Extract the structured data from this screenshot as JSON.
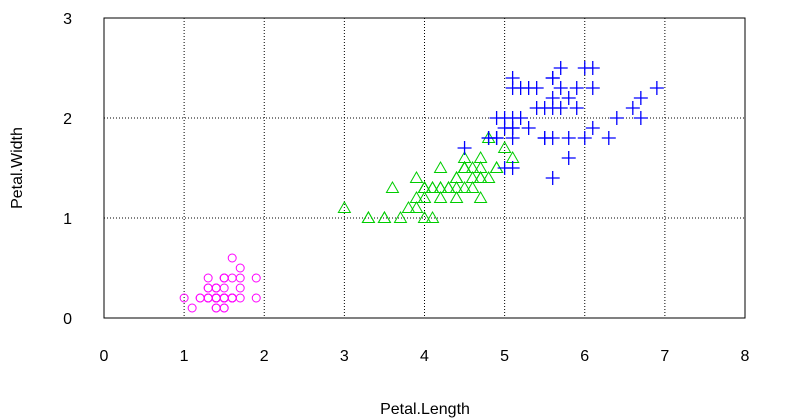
{
  "chart_data": {
    "type": "scatter",
    "x_label": "Petal.Length",
    "y_label": "Petal.Width",
    "xlim": [
      0,
      8
    ],
    "ylim": [
      0,
      3
    ],
    "xticks": [
      0,
      1,
      2,
      3,
      4,
      5,
      6,
      7,
      8
    ],
    "yticks": [
      0,
      1,
      2,
      3
    ],
    "grid": true,
    "series": [
      {
        "color": "#ff00ff",
        "marker": "circle",
        "x": [
          1.4,
          1.4,
          1.3,
          1.5,
          1.4,
          1.7,
          1.4,
          1.5,
          1.4,
          1.5,
          1.5,
          1.6,
          1.4,
          1.1,
          1.2,
          1.5,
          1.3,
          1.4,
          1.7,
          1.5,
          1.7,
          1.5,
          1.0,
          1.7,
          1.9,
          1.6,
          1.6,
          1.5,
          1.4,
          1.6,
          1.6,
          1.5,
          1.5,
          1.4,
          1.5,
          1.2,
          1.3,
          1.4,
          1.3,
          1.5,
          1.3,
          1.3,
          1.3,
          1.6,
          1.9,
          1.4,
          1.6,
          1.4,
          1.5,
          1.4
        ],
        "y": [
          0.2,
          0.2,
          0.2,
          0.2,
          0.2,
          0.4,
          0.3,
          0.2,
          0.2,
          0.1,
          0.2,
          0.2,
          0.1,
          0.1,
          0.2,
          0.4,
          0.4,
          0.3,
          0.3,
          0.3,
          0.2,
          0.4,
          0.2,
          0.5,
          0.2,
          0.2,
          0.4,
          0.2,
          0.2,
          0.2,
          0.2,
          0.4,
          0.1,
          0.2,
          0.2,
          0.2,
          0.2,
          0.1,
          0.2,
          0.2,
          0.3,
          0.3,
          0.2,
          0.6,
          0.4,
          0.3,
          0.2,
          0.2,
          0.2,
          0.2
        ]
      },
      {
        "color": "#00cd00",
        "marker": "triangle",
        "x": [
          4.7,
          4.5,
          4.9,
          4.0,
          4.6,
          4.5,
          4.7,
          3.3,
          4.6,
          3.9,
          3.5,
          4.2,
          4.0,
          4.7,
          3.6,
          4.4,
          4.5,
          4.1,
          4.5,
          3.9,
          4.8,
          4.0,
          4.9,
          4.7,
          4.3,
          4.4,
          4.8,
          5.0,
          4.5,
          3.5,
          3.8,
          3.7,
          3.9,
          5.1,
          4.5,
          4.5,
          4.7,
          4.4,
          4.1,
          4.0,
          4.4,
          4.6,
          4.0,
          3.3,
          4.2,
          4.2,
          4.2,
          4.3,
          3.0,
          4.1
        ],
        "y": [
          1.4,
          1.5,
          1.5,
          1.3,
          1.5,
          1.3,
          1.6,
          1.0,
          1.3,
          1.4,
          1.0,
          1.5,
          1.0,
          1.4,
          1.3,
          1.4,
          1.5,
          1.0,
          1.5,
          1.1,
          1.8,
          1.3,
          1.5,
          1.2,
          1.3,
          1.4,
          1.4,
          1.7,
          1.5,
          1.0,
          1.1,
          1.0,
          1.2,
          1.6,
          1.5,
          1.6,
          1.5,
          1.3,
          1.3,
          1.3,
          1.2,
          1.4,
          1.2,
          1.0,
          1.3,
          1.2,
          1.3,
          1.3,
          1.1,
          1.3
        ]
      },
      {
        "color": "#0000ff",
        "marker": "plus",
        "x": [
          6.0,
          5.1,
          5.9,
          5.6,
          5.8,
          6.6,
          4.5,
          6.3,
          5.8,
          6.1,
          5.1,
          5.3,
          5.5,
          5.0,
          5.1,
          5.3,
          5.5,
          6.7,
          6.9,
          5.0,
          5.7,
          4.9,
          6.7,
          4.9,
          5.7,
          6.0,
          4.8,
          4.9,
          5.6,
          5.8,
          6.1,
          6.4,
          5.6,
          5.1,
          5.6,
          6.1,
          5.6,
          5.5,
          4.8,
          5.4,
          5.6,
          5.1,
          5.1,
          5.9,
          5.7,
          5.2,
          5.0,
          5.2,
          5.4,
          5.1
        ],
        "y": [
          2.5,
          1.9,
          2.1,
          1.8,
          2.2,
          2.1,
          1.7,
          1.8,
          1.8,
          2.5,
          2.0,
          1.9,
          2.1,
          2.0,
          2.4,
          2.3,
          1.8,
          2.2,
          2.3,
          1.5,
          2.3,
          2.0,
          2.0,
          1.8,
          2.1,
          1.8,
          1.8,
          1.8,
          2.1,
          1.6,
          1.9,
          2.0,
          2.2,
          1.5,
          1.4,
          2.3,
          2.4,
          1.8,
          1.8,
          2.1,
          2.4,
          2.3,
          1.9,
          2.3,
          2.5,
          2.3,
          1.9,
          2.0,
          2.3,
          1.8
        ]
      }
    ]
  }
}
